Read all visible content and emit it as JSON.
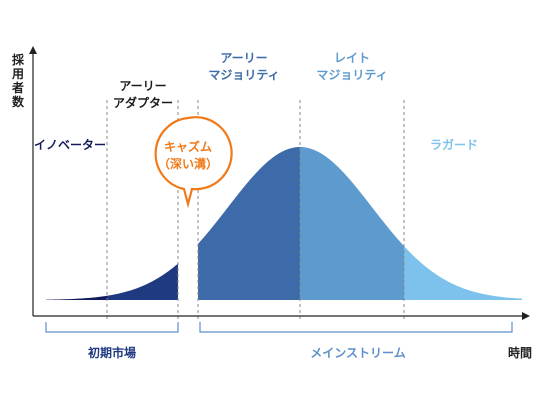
{
  "axis": {
    "y_label_chars": [
      "採",
      "用",
      "者",
      "数"
    ],
    "x_label": "時間"
  },
  "segments": [
    {
      "id": "innovators",
      "lines": [
        "イノベーター"
      ],
      "color": "#141a5e",
      "text_color": "#141a5e"
    },
    {
      "id": "early-adopters",
      "lines": [
        "アーリー",
        "アダプター"
      ],
      "color": "#1f3a80",
      "text_color": "#1a1a1a"
    },
    {
      "id": "early-majority",
      "lines": [
        "アーリー",
        "マジョリティ"
      ],
      "color": "#3d6aa8",
      "text_color": "#3d6aa8"
    },
    {
      "id": "late-majority",
      "lines": [
        "レイト",
        "マジョリティ"
      ],
      "color": "#5d9acd",
      "text_color": "#5d9acd"
    },
    {
      "id": "laggards",
      "lines": [
        "ラガード"
      ],
      "color": "#7cc2ec",
      "text_color": "#7cc2ec"
    }
  ],
  "chasm": {
    "lines": [
      "キャズム",
      "（深い溝）"
    ],
    "color": "#f07a1a"
  },
  "markets": {
    "early": "初期市場",
    "main": "メインストリーム"
  }
}
